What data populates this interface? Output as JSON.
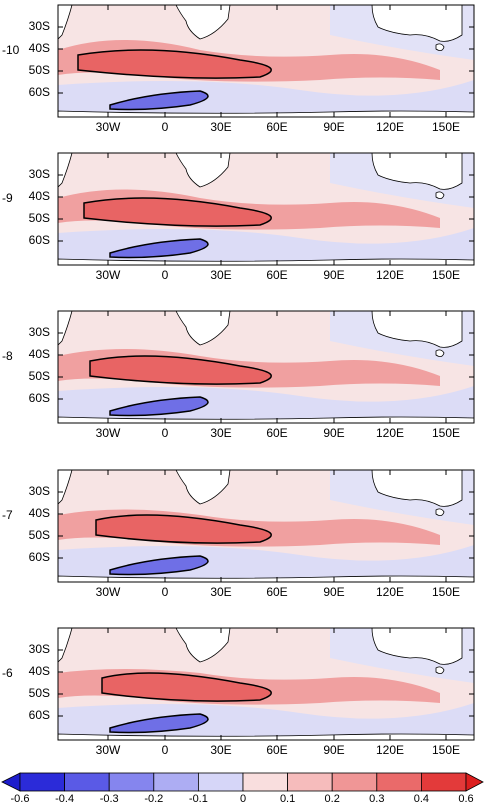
{
  "panels": [
    {
      "label": "-10"
    },
    {
      "label": "-9"
    },
    {
      "label": "-8"
    },
    {
      "label": "-7"
    },
    {
      "label": "-6"
    }
  ],
  "lat_labels": [
    "30S",
    "40S",
    "50S",
    "60S"
  ],
  "lon_labels": [
    "30W",
    "0",
    "30E",
    "60E",
    "90E",
    "120E",
    "150E"
  ],
  "colorbar": {
    "ticks": [
      "-0.6",
      "-0.4",
      "-0.3",
      "-0.2",
      "-0.1",
      "0",
      "0.1",
      "0.2",
      "0.3",
      "0.4",
      "0.6"
    ],
    "colors": [
      "#2b2bd9",
      "#5a5ae6",
      "#8585ee",
      "#adadf3",
      "#d6d6f8",
      "#f9dede",
      "#f6bcbc",
      "#f09696",
      "#ea6a6a",
      "#e33a3a"
    ],
    "low_arrow_color": "#1d1dcc",
    "high_arrow_color": "#dc1e1e"
  }
}
